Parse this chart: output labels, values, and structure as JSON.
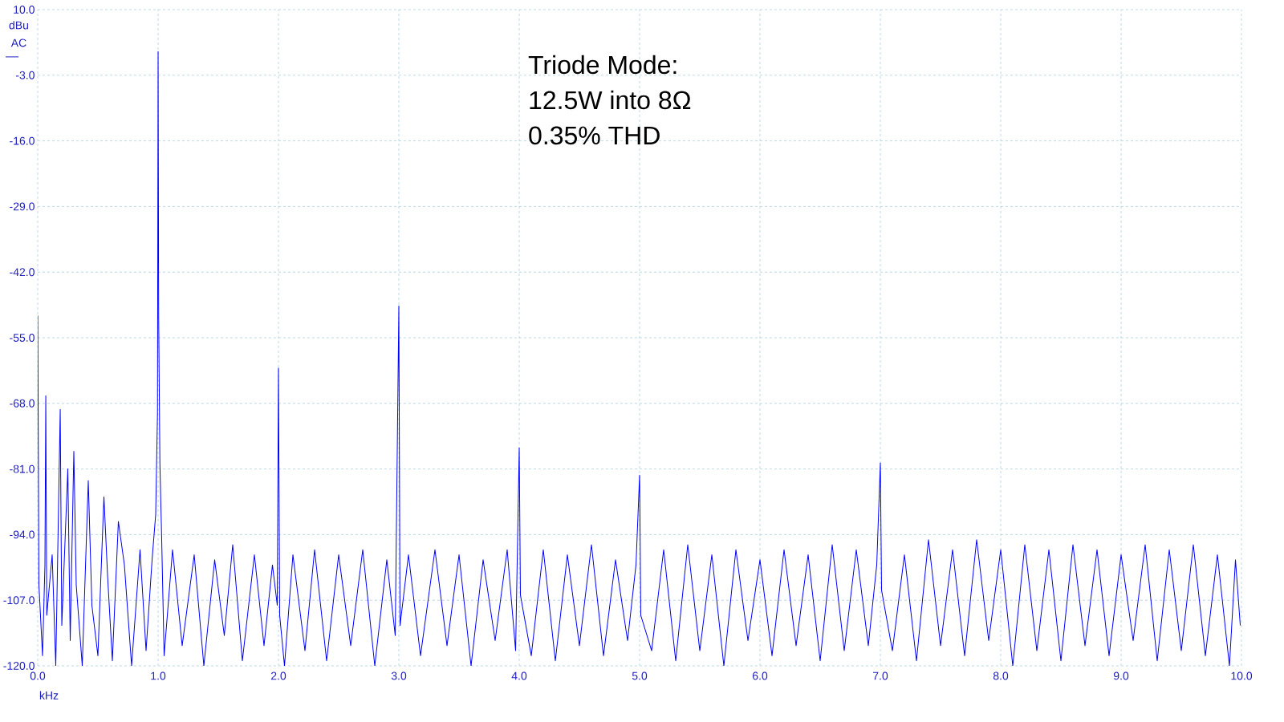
{
  "chart_data": {
    "type": "line",
    "xlabel": "kHz",
    "ylabel": "dBu AC",
    "annotations": [
      "Triode Mode:",
      "12.5W into 8Ω",
      "0.35% THD"
    ],
    "xlim": [
      0,
      10
    ],
    "ylim": [
      -120,
      10
    ],
    "grid": true,
    "xticks": [
      {
        "value": 0,
        "label": "0.0"
      },
      {
        "value": 1,
        "label": "1.0"
      },
      {
        "value": 2,
        "label": "2.0"
      },
      {
        "value": 3,
        "label": "3.0"
      },
      {
        "value": 4,
        "label": "4.0"
      },
      {
        "value": 5,
        "label": "5.0"
      },
      {
        "value": 6,
        "label": "6.0"
      },
      {
        "value": 7,
        "label": "7.0"
      },
      {
        "value": 8,
        "label": "8.0"
      },
      {
        "value": 9,
        "label": "9.0"
      },
      {
        "value": 10,
        "label": "10.0"
      }
    ],
    "yticks": [
      {
        "value": -120,
        "label": "-120.0"
      },
      {
        "value": -107,
        "label": "-107.0"
      },
      {
        "value": -94,
        "label": "-94.0"
      },
      {
        "value": -81,
        "label": "-81.0"
      },
      {
        "value": -68,
        "label": "-68.0"
      },
      {
        "value": -55,
        "label": "-55.0"
      },
      {
        "value": -42,
        "label": "-42.0"
      },
      {
        "value": -29,
        "label": "-29.0"
      },
      {
        "value": -16,
        "label": "-16.0"
      },
      {
        "value": -3,
        "label": "-3.0"
      },
      {
        "value": 10,
        "label": "10.0"
      }
    ],
    "x": [
      0.0,
      0.01,
      0.04,
      0.06,
      0.067,
      0.075,
      0.12,
      0.15,
      0.187,
      0.2,
      0.25,
      0.27,
      0.3,
      0.32,
      0.37,
      0.42,
      0.45,
      0.5,
      0.55,
      0.58,
      0.62,
      0.67,
      0.72,
      0.78,
      0.85,
      0.9,
      0.95,
      0.98,
      0.995,
      1.0,
      1.005,
      1.015,
      1.03,
      1.05,
      1.12,
      1.2,
      1.3,
      1.38,
      1.47,
      1.55,
      1.62,
      1.7,
      1.8,
      1.88,
      1.95,
      1.99,
      2.0,
      2.01,
      2.05,
      2.12,
      2.22,
      2.3,
      2.4,
      2.5,
      2.6,
      2.7,
      2.8,
      2.9,
      2.97,
      3.0,
      3.01,
      3.08,
      3.18,
      3.3,
      3.4,
      3.5,
      3.6,
      3.7,
      3.8,
      3.9,
      3.97,
      4.0,
      4.01,
      4.1,
      4.2,
      4.3,
      4.4,
      4.5,
      4.6,
      4.7,
      4.8,
      4.9,
      4.97,
      5.0,
      5.01,
      5.1,
      5.2,
      5.3,
      5.4,
      5.5,
      5.6,
      5.7,
      5.8,
      5.9,
      6.0,
      6.1,
      6.2,
      6.3,
      6.4,
      6.5,
      6.6,
      6.7,
      6.8,
      6.9,
      6.97,
      7.0,
      7.01,
      7.1,
      7.2,
      7.3,
      7.4,
      7.5,
      7.6,
      7.7,
      7.8,
      7.9,
      8.0,
      8.1,
      8.2,
      8.3,
      8.4,
      8.5,
      8.6,
      8.7,
      8.8,
      8.9,
      9.0,
      9.1,
      9.2,
      9.3,
      9.4,
      9.5,
      9.6,
      9.7,
      9.8,
      9.9,
      9.95,
      9.99
    ],
    "series": [
      {
        "color": "#0000ff",
        "values": [
          -50.6,
          -104,
          -118,
          -100,
          -66.5,
          -110,
          -98,
          -120,
          -69.2,
          -112,
          -81,
          -115,
          -77.5,
          -104,
          -120,
          -83.3,
          -108,
          -118,
          -86.5,
          -102,
          -119,
          -91.4,
          -100,
          -120,
          -97,
          -117,
          -99,
          -90,
          -70,
          1.7,
          -51.4,
          -80,
          -95,
          -118,
          -97,
          -116,
          -98,
          -120,
          -99,
          -114,
          -96,
          -119,
          -98,
          -116,
          -100,
          -108,
          -61,
          -110,
          -120,
          -98,
          -117,
          -97,
          -119,
          -98,
          -116,
          -97,
          -120,
          -99,
          -114,
          -48.7,
          -112,
          -98,
          -118,
          -97,
          -116,
          -98,
          -120,
          -99,
          -115,
          -97,
          -117,
          -76.8,
          -106,
          -118,
          -97,
          -119,
          -98,
          -116,
          -96,
          -118,
          -99,
          -115,
          -100,
          -82.2,
          -110,
          -117,
          -97,
          -119,
          -96,
          -117,
          -98,
          -120,
          -97,
          -115,
          -99,
          -118,
          -97,
          -116,
          -98,
          -119,
          -96,
          -117,
          -97,
          -116,
          -100,
          -79.8,
          -105,
          -117,
          -98,
          -119,
          -95,
          -116,
          -97,
          -118,
          -95,
          -115,
          -97,
          -120,
          -96,
          -117,
          -97,
          -119,
          -96,
          -116,
          -97,
          -118,
          -98,
          -115,
          -96,
          -119,
          -97,
          -117,
          -96,
          -118,
          -98,
          -120,
          -99,
          -112
        ]
      }
    ]
  }
}
